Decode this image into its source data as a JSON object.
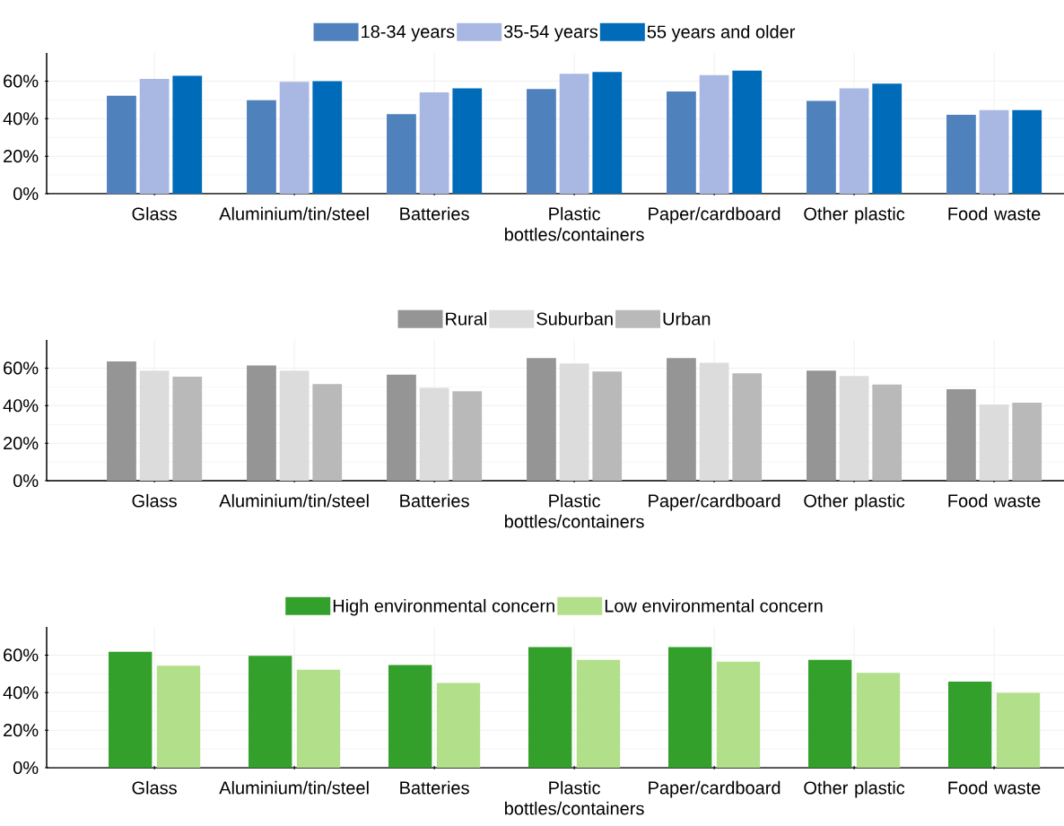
{
  "chart_data": [
    {
      "type": "bar",
      "categories": [
        "Glass",
        "Aluminium/tin/steel",
        "Batteries",
        "Plastic bottles/containers",
        "Paper/cardboard",
        "Other plastic",
        "Food waste"
      ],
      "series": [
        {
          "name": "18-34 years",
          "color": "#4f81bd",
          "values": [
            52.2,
            49.8,
            42.4,
            55.8,
            54.4,
            49.4,
            42.0
          ]
        },
        {
          "name": "35-54 years",
          "color": "#a9b8e3",
          "values": [
            61.1,
            59.6,
            54.0,
            63.9,
            63.2,
            56.1,
            44.5
          ]
        },
        {
          "name": "55 years and older",
          "color": "#006bb8",
          "values": [
            62.8,
            60.0,
            56.1,
            64.9,
            65.6,
            58.6,
            44.5
          ]
        }
      ],
      "ylim": [
        0,
        75
      ],
      "yticks": [
        {
          "value": 0,
          "label": "0%"
        },
        {
          "value": 20,
          "label": "20%"
        },
        {
          "value": 40,
          "label": "40%"
        },
        {
          "value": 60,
          "label": "60%"
        }
      ],
      "grid": true,
      "legend": "top"
    },
    {
      "type": "bar",
      "categories": [
        "Glass",
        "Aluminium/tin/steel",
        "Batteries",
        "Plastic bottles/containers",
        "Paper/cardboard",
        "Other plastic",
        "Food waste"
      ],
      "series": [
        {
          "name": "Rural",
          "color": "#959595",
          "values": [
            63.5,
            61.4,
            56.5,
            65.3,
            65.3,
            58.6,
            48.7
          ]
        },
        {
          "name": "Suburban",
          "color": "#dcdcdc",
          "values": [
            58.6,
            58.6,
            49.4,
            62.5,
            62.8,
            55.8,
            40.6
          ]
        },
        {
          "name": "Urban",
          "color": "#b9b9b9",
          "values": [
            55.4,
            51.5,
            47.6,
            58.2,
            57.2,
            51.2,
            41.6
          ]
        }
      ],
      "ylim": [
        0,
        75
      ],
      "yticks": [
        {
          "value": 0,
          "label": "0%"
        },
        {
          "value": 20,
          "label": "20%"
        },
        {
          "value": 40,
          "label": "40%"
        },
        {
          "value": 60,
          "label": "60%"
        }
      ],
      "grid": true,
      "legend": "top"
    },
    {
      "type": "bar",
      "categories": [
        "Glass",
        "Aluminium/tin/steel",
        "Batteries",
        "Plastic bottles/containers",
        "Paper/cardboard",
        "Other plastic",
        "Food waste"
      ],
      "series": [
        {
          "name": "High environmental concern",
          "color": "#33a02c",
          "values": [
            61.8,
            59.6,
            54.7,
            64.2,
            64.2,
            57.5,
            45.9
          ]
        },
        {
          "name": "Low environmental concern",
          "color": "#b2df8a",
          "values": [
            54.4,
            52.2,
            45.2,
            57.5,
            56.5,
            50.5,
            39.9
          ]
        }
      ],
      "ylim": [
        0,
        75
      ],
      "yticks": [
        {
          "value": 0,
          "label": "0%"
        },
        {
          "value": 20,
          "label": "20%"
        },
        {
          "value": 40,
          "label": "40%"
        },
        {
          "value": 60,
          "label": "60%"
        }
      ],
      "grid": true,
      "legend": "top"
    }
  ]
}
